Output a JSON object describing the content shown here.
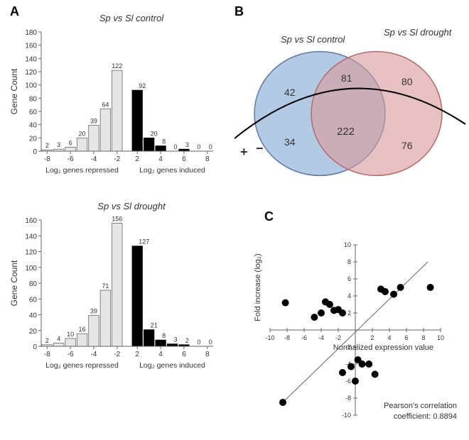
{
  "panelA": {
    "label": "A",
    "top_chart": {
      "title": "Sp vs Sl control",
      "type": "bar",
      "y_label": "Gene Count",
      "ylim": [
        0,
        180
      ],
      "ytick_step": 20,
      "yticks": [
        0,
        20,
        40,
        60,
        80,
        100,
        120,
        140,
        160,
        180
      ],
      "repressed": {
        "x_bins": [
          -8,
          -6,
          -4,
          -2
        ],
        "label": "Log₂ genes repressed",
        "fill": "#e6e6e6",
        "stroke": "#666666",
        "values": [
          2,
          3,
          6,
          20,
          39,
          64,
          122
        ],
        "bar_labels": [
          "2",
          "3",
          "6",
          "20",
          "39",
          "64",
          "122"
        ]
      },
      "induced": {
        "x_bins": [
          2,
          4,
          6,
          8
        ],
        "label": "Log₂ genes induced",
        "fill": "#000000",
        "stroke": "#000000",
        "values": [
          92,
          20,
          8,
          0,
          3,
          0,
          0
        ],
        "bar_labels": [
          "92",
          "20",
          "8",
          "0",
          "3",
          "0",
          "0"
        ]
      }
    },
    "bottom_chart": {
      "title": "Sp vs Sl drought",
      "type": "bar",
      "y_label": "Gene Count",
      "ylim": [
        0,
        160
      ],
      "ytick_step": 20,
      "yticks": [
        0,
        20,
        40,
        60,
        80,
        100,
        120,
        140,
        160
      ],
      "repressed": {
        "x_bins": [
          -8,
          -6,
          -4,
          -2
        ],
        "label": "Log₂ genes repressed",
        "fill": "#e6e6e6",
        "stroke": "#666666",
        "values": [
          2,
          4,
          10,
          16,
          39,
          71,
          156
        ],
        "bar_labels": [
          "2",
          "4",
          "10",
          "16",
          "39",
          "71",
          "156"
        ]
      },
      "induced": {
        "x_bins": [
          2,
          4,
          6,
          8
        ],
        "label": "Log₂ genes induced",
        "fill": "#000000",
        "stroke": "#000000",
        "values": [
          127,
          21,
          8,
          3,
          2,
          0,
          0
        ],
        "bar_labels": [
          "127",
          "21",
          "8",
          "3",
          "2",
          "0",
          "0"
        ]
      }
    }
  },
  "panelB": {
    "label": "B",
    "type": "venn",
    "left_label": "Sp vs Sl control",
    "right_label": "Sp vs Sl drought",
    "left_color": "#8aaed6",
    "left_opacity": 0.65,
    "right_color": "#d99a9a",
    "right_opacity": 0.6,
    "stroke": "#000000",
    "left_only_top": "42",
    "left_only_bottom": "34",
    "overlap_top": "81",
    "overlap_center": "222",
    "right_only_top": "80",
    "right_only_bottom": "76",
    "plus_label": "+",
    "minus_label": "−"
  },
  "panelC": {
    "label": "C",
    "type": "scatter",
    "x_label": "Normalized expression value",
    "y_label": "Fold increase (log₂)",
    "xlim": [
      -10,
      10
    ],
    "xtick_step": 2,
    "ylim": [
      -10,
      10
    ],
    "ytick_step": 2,
    "xticks": [
      -10,
      -8,
      -6,
      -4,
      -2,
      0,
      2,
      4,
      6,
      8,
      10
    ],
    "yticks": [
      -10,
      -8,
      -6,
      -4,
      -2,
      2,
      4,
      6,
      8,
      10
    ],
    "marker": "circle",
    "marker_color": "#000000",
    "marker_size": 5,
    "line_color": "#666666",
    "line_width": 1,
    "fit_line": {
      "x1": -8.5,
      "y1": -8.5,
      "x2": 8.5,
      "y2": 8
    },
    "points": [
      [
        -8.2,
        3.2
      ],
      [
        -4.8,
        1.5
      ],
      [
        -4.0,
        2.0
      ],
      [
        -3.5,
        3.3
      ],
      [
        -3.0,
        3.0
      ],
      [
        -2.5,
        2.3
      ],
      [
        -2.0,
        2.4
      ],
      [
        -1.5,
        2.0
      ],
      [
        3.0,
        4.8
      ],
      [
        3.5,
        4.5
      ],
      [
        4.5,
        4.2
      ],
      [
        5.3,
        5.0
      ],
      [
        8.8,
        5.0
      ],
      [
        -8.5,
        -8.5
      ],
      [
        -1.5,
        -5.0
      ],
      [
        -0.5,
        -4.3
      ],
      [
        0.3,
        -3.5
      ],
      [
        0.0,
        -6.0
      ],
      [
        0.8,
        -4.0
      ],
      [
        1.6,
        -4.0
      ],
      [
        2.3,
        -5.2
      ]
    ],
    "pearson_label_1": "Pearson's correlation",
    "pearson_label_2": "coefficient: 0.8894"
  },
  "colors": {
    "background": "#ffffff",
    "axis": "#666666",
    "text": "#333333"
  }
}
